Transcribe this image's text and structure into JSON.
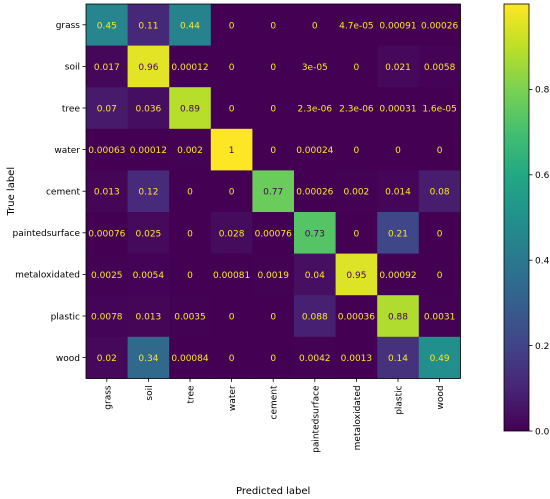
{
  "chart_data": {
    "type": "heatmap",
    "title": "",
    "xlabel": "Predicted label",
    "ylabel": "True label",
    "categories": [
      "grass",
      "soil",
      "tree",
      "water",
      "cement",
      "paintedsurface",
      "metaloxidated",
      "plastic",
      "wood"
    ],
    "values": [
      [
        0.45,
        0.11,
        0.44,
        0,
        0,
        0,
        4.7e-05,
        0.00091,
        0.00026
      ],
      [
        0.017,
        0.96,
        0.00012,
        0,
        0,
        3e-05,
        0,
        0.021,
        0.0058
      ],
      [
        0.07,
        0.036,
        0.89,
        0,
        0,
        2.3e-06,
        2.3e-06,
        0.00031,
        1.6e-05
      ],
      [
        0.00063,
        0.00012,
        0.002,
        1,
        0,
        0.00024,
        0,
        0,
        0
      ],
      [
        0.013,
        0.12,
        0,
        0,
        0.77,
        0.00026,
        0.002,
        0.014,
        0.08
      ],
      [
        0.00076,
        0.025,
        0,
        0.028,
        0.00076,
        0.73,
        0,
        0.21,
        0
      ],
      [
        0.0025,
        0.0054,
        0,
        0.00081,
        0.0019,
        0.04,
        0.95,
        0.00092,
        0
      ],
      [
        0.0078,
        0.013,
        0.0035,
        0,
        0,
        0.088,
        0.00036,
        0.88,
        0.0031
      ],
      [
        0.02,
        0.34,
        0.00084,
        0,
        0,
        0.0042,
        0.0013,
        0.14,
        0.49
      ]
    ],
    "cell_labels": [
      [
        "0.45",
        "0.11",
        "0.44",
        "0",
        "0",
        "0",
        "4.7e-05",
        "0.00091",
        "0.00026"
      ],
      [
        "0.017",
        "0.96",
        "0.00012",
        "0",
        "0",
        "3e-05",
        "0",
        "0.021",
        "0.0058"
      ],
      [
        "0.07",
        "0.036",
        "0.89",
        "0",
        "0",
        "2.3e-06",
        "2.3e-06",
        "0.00031",
        "1.6e-05"
      ],
      [
        "0.00063",
        "0.00012",
        "0.002",
        "1",
        "0",
        "0.00024",
        "0",
        "0",
        "0"
      ],
      [
        "0.013",
        "0.12",
        "0",
        "0",
        "0.77",
        "0.00026",
        "0.002",
        "0.014",
        "0.08"
      ],
      [
        "0.00076",
        "0.025",
        "0",
        "0.028",
        "0.00076",
        "0.73",
        "0",
        "0.21",
        "0"
      ],
      [
        "0.0025",
        "0.0054",
        "0",
        "0.00081",
        "0.0019",
        "0.04",
        "0.95",
        "0.00092",
        "0"
      ],
      [
        "0.0078",
        "0.013",
        "0.0035",
        "0",
        "0",
        "0.088",
        "0.00036",
        "0.88",
        "0.0031"
      ],
      [
        "0.02",
        "0.34",
        "0.00084",
        "0",
        "0",
        "0.0042",
        "0.0013",
        "0.14",
        "0.49"
      ]
    ],
    "colorbar": {
      "range": [
        0,
        1
      ],
      "ticks": [
        0.0,
        0.2,
        0.4,
        0.6,
        0.8
      ],
      "tick_labels": [
        "0.0",
        "0.2",
        "0.4",
        "0.6",
        "0.8"
      ],
      "colormap": "viridis"
    },
    "text_colors": {
      "on_dark": "#fde725",
      "on_light": "#440154"
    }
  }
}
